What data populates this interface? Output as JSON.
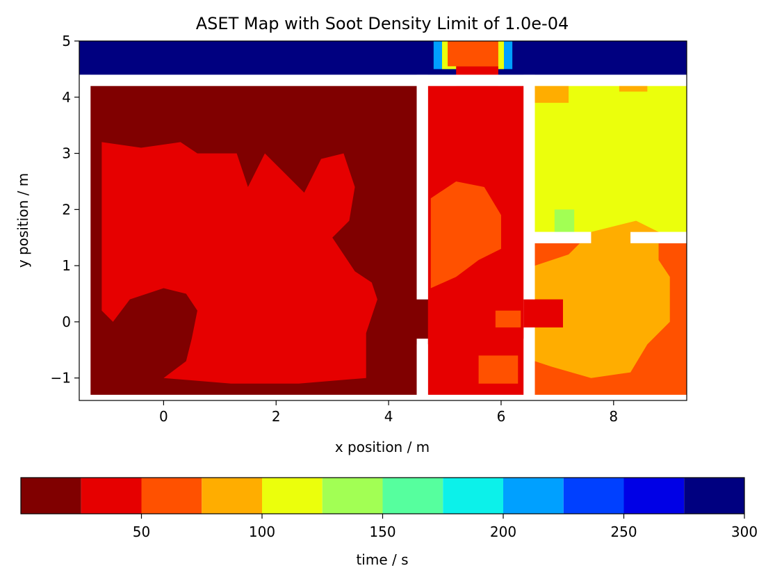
{
  "chart_data": {
    "type": "heatmap",
    "title": "ASET Map with Soot Density Limit of 1.0e-04",
    "xlabel": "x position / m",
    "ylabel": "y position / m",
    "xlim": [
      -1.5,
      9.3
    ],
    "ylim": [
      -1.4,
      5.0
    ],
    "xticks": [
      0,
      2,
      4,
      6,
      8
    ],
    "xtick_labels": [
      "0",
      "2",
      "4",
      "6",
      "8"
    ],
    "yticks": [
      -1,
      0,
      1,
      2,
      3,
      4,
      5
    ],
    "ytick_labels": [
      "−1",
      "0",
      "1",
      "2",
      "3",
      "4",
      "5"
    ],
    "grid": false,
    "colorbar": {
      "label": "time / s",
      "orientation": "horizontal",
      "range": [
        0,
        300
      ],
      "ticks": [
        50,
        100,
        150,
        200,
        250,
        300
      ],
      "tick_labels": [
        "50",
        "100",
        "150",
        "200",
        "250",
        "300"
      ],
      "bins": [
        {
          "from": 0,
          "to": 25,
          "color": "#800000"
        },
        {
          "from": 25,
          "to": 50,
          "color": "#e60000"
        },
        {
          "from": 50,
          "to": 75,
          "color": "#ff5100"
        },
        {
          "from": 75,
          "to": 100,
          "color": "#ffad00"
        },
        {
          "from": 100,
          "to": 125,
          "color": "#ebff0c"
        },
        {
          "from": 125,
          "to": 150,
          "color": "#a2ff54"
        },
        {
          "from": 150,
          "to": 175,
          "color": "#56ff9e"
        },
        {
          "from": 175,
          "to": 200,
          "color": "#0cf1ea"
        },
        {
          "from": 200,
          "to": 225,
          "color": "#00a0ff"
        },
        {
          "from": 225,
          "to": 250,
          "color": "#0040ff"
        },
        {
          "from": 250,
          "to": 275,
          "color": "#0000e6"
        },
        {
          "from": 275,
          "to": 300,
          "color": "#000080"
        }
      ]
    },
    "regions": [
      {
        "name": "corridor",
        "value": 300,
        "x": [
          -1.5,
          9.3
        ],
        "y": [
          4.4,
          5.0
        ]
      },
      {
        "name": "corridor-hotspot-outer",
        "value": 220,
        "x": [
          4.8,
          6.2
        ],
        "y": [
          4.5,
          5.0
        ]
      },
      {
        "name": "corridor-hotspot-ring",
        "value": 120,
        "x": [
          4.95,
          6.05
        ],
        "y": [
          4.5,
          5.0
        ]
      },
      {
        "name": "corridor-hotspot-core",
        "value": 60,
        "x": [
          5.05,
          5.95
        ],
        "y": [
          4.55,
          5.0
        ]
      },
      {
        "name": "room-left",
        "value": 20,
        "x": [
          -1.3,
          4.5
        ],
        "y": [
          -1.3,
          4.2
        ]
      },
      {
        "name": "room-left-smoke",
        "value": 40,
        "polygon": [
          [
            -1.1,
            3.2
          ],
          [
            -0.4,
            3.1
          ],
          [
            0.3,
            3.2
          ],
          [
            0.6,
            3.0
          ],
          [
            1.3,
            3.0
          ],
          [
            1.5,
            2.4
          ],
          [
            1.8,
            3.0
          ],
          [
            2.2,
            2.6
          ],
          [
            2.5,
            2.3
          ],
          [
            2.8,
            2.9
          ],
          [
            3.2,
            3.0
          ],
          [
            3.4,
            2.4
          ],
          [
            3.3,
            1.8
          ],
          [
            3.0,
            1.5
          ],
          [
            3.4,
            0.9
          ],
          [
            3.7,
            0.7
          ],
          [
            3.8,
            0.4
          ],
          [
            3.6,
            -0.2
          ],
          [
            3.6,
            -1.0
          ],
          [
            2.4,
            -1.1
          ],
          [
            1.2,
            -1.1
          ],
          [
            0.0,
            -1.0
          ],
          [
            0.4,
            -0.7
          ],
          [
            0.5,
            -0.3
          ],
          [
            0.6,
            0.2
          ],
          [
            0.4,
            0.5
          ],
          [
            0.0,
            0.6
          ],
          [
            -0.6,
            0.4
          ],
          [
            -0.9,
            0.0
          ],
          [
            -1.1,
            0.2
          ],
          [
            -1.1,
            1.8
          ]
        ]
      },
      {
        "name": "door-link",
        "value": 20,
        "x": [
          4.45,
          5.35
        ],
        "y": [
          -0.4,
          0.4
        ]
      },
      {
        "name": "room-middle",
        "value": 40,
        "x": [
          4.7,
          6.4
        ],
        "y": [
          -1.3,
          4.2
        ]
      },
      {
        "name": "room-middle-stripe",
        "value": 60,
        "polygon": [
          [
            4.75,
            2.2
          ],
          [
            5.2,
            2.5
          ],
          [
            5.7,
            2.4
          ],
          [
            6.0,
            1.9
          ],
          [
            6.0,
            1.3
          ],
          [
            5.6,
            1.1
          ],
          [
            5.2,
            0.8
          ],
          [
            4.75,
            0.6
          ]
        ]
      },
      {
        "name": "room-middle-patch",
        "value": 60,
        "x": [
          5.6,
          6.3
        ],
        "y": [
          -1.1,
          -0.6
        ]
      },
      {
        "name": "room-middle-patch-2",
        "value": 60,
        "x": [
          5.9,
          6.35
        ],
        "y": [
          -0.1,
          0.2
        ]
      },
      {
        "name": "corridor-door-wall-gap",
        "value": 40,
        "x": [
          5.2,
          5.95
        ],
        "y": [
          4.2,
          4.55
        ]
      },
      {
        "name": "room-right-upper",
        "value": 110,
        "x": [
          6.6,
          9.3
        ],
        "y": [
          1.6,
          4.2
        ]
      },
      {
        "name": "room-right-upper-strip",
        "value": 80,
        "x": [
          6.6,
          7.2
        ],
        "y": [
          3.9,
          4.2
        ]
      },
      {
        "name": "room-right-upper-strip-2",
        "value": 80,
        "x": [
          8.1,
          8.6
        ],
        "y": [
          4.1,
          4.2
        ]
      },
      {
        "name": "room-right-upper-green",
        "value": 135,
        "x": [
          6.95,
          7.3
        ],
        "y": [
          1.6,
          2.0
        ]
      },
      {
        "name": "room-right-lower",
        "value": 60,
        "x": [
          6.6,
          9.3
        ],
        "y": [
          -1.3,
          1.4
        ]
      },
      {
        "name": "room-right-lower-smoke",
        "value": 90,
        "polygon": [
          [
            6.6,
            1.0
          ],
          [
            7.2,
            1.2
          ],
          [
            7.6,
            1.6
          ],
          [
            8.4,
            1.8
          ],
          [
            8.8,
            1.6
          ],
          [
            8.8,
            1.1
          ],
          [
            9.0,
            0.8
          ],
          [
            9.0,
            0.0
          ],
          [
            8.6,
            -0.4
          ],
          [
            8.3,
            -0.9
          ],
          [
            7.6,
            -1.0
          ],
          [
            6.9,
            -0.8
          ],
          [
            6.6,
            -0.7
          ]
        ]
      },
      {
        "name": "door-right-link",
        "value": 40,
        "x": [
          6.4,
          7.1
        ],
        "y": [
          -0.1,
          0.4
        ]
      }
    ],
    "obstructions": [
      {
        "name": "wall-corridor",
        "x": [
          -1.5,
          9.3
        ],
        "y": [
          4.2,
          4.4
        ]
      },
      {
        "name": "wall-left-outer",
        "x": [
          -1.5,
          -1.3
        ],
        "y": [
          -1.4,
          4.4
        ]
      },
      {
        "name": "wall-bottom",
        "x": [
          -1.5,
          9.3
        ],
        "y": [
          -1.4,
          -1.3
        ]
      },
      {
        "name": "wall-middle-left-upper",
        "x": [
          4.5,
          4.7
        ],
        "y": [
          0.4,
          4.4
        ]
      },
      {
        "name": "wall-middle-left-lower",
        "x": [
          4.5,
          4.7
        ],
        "y": [
          -1.4,
          -0.3
        ]
      },
      {
        "name": "wall-middle-right-upper",
        "x": [
          6.4,
          6.6
        ],
        "y": [
          0.4,
          4.4
        ]
      },
      {
        "name": "wall-middle-right-lower",
        "x": [
          6.4,
          6.6
        ],
        "y": [
          -1.4,
          -0.3
        ]
      },
      {
        "name": "wall-right-divider-a",
        "x": [
          6.6,
          7.6
        ],
        "y": [
          1.4,
          1.6
        ]
      },
      {
        "name": "wall-right-divider-b",
        "x": [
          8.3,
          9.3
        ],
        "y": [
          1.4,
          1.6
        ]
      }
    ]
  }
}
